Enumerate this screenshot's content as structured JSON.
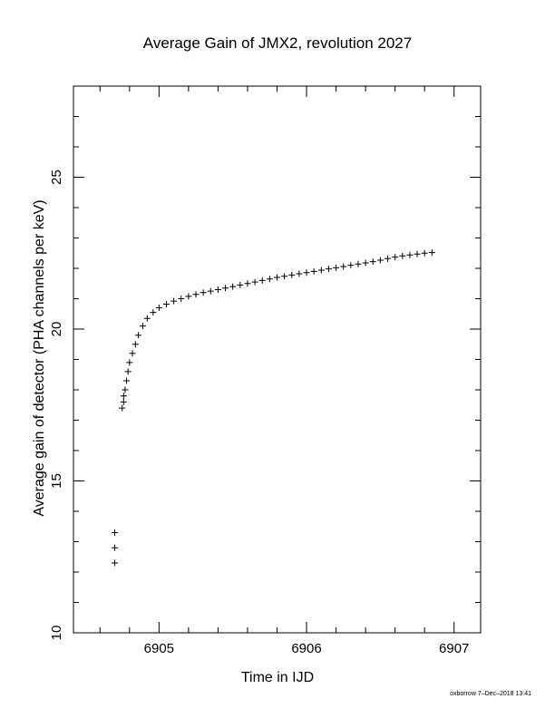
{
  "chart_data": {
    "type": "scatter",
    "title": "Average Gain of JMX2, revolution 2027",
    "xlabel": "Time in IJD",
    "ylabel": "Average gain of detector (PHA channels per keV)",
    "xlim": [
      6904.42,
      6907.18
    ],
    "ylim": [
      10,
      28
    ],
    "xticks": [
      6905,
      6906,
      6907
    ],
    "yticks": [
      10,
      15,
      20,
      25
    ],
    "marker": "+",
    "grid": false,
    "series": [
      {
        "points": [
          [
            6904.7,
            13.3
          ],
          [
            6904.7,
            12.8
          ],
          [
            6904.7,
            12.3
          ],
          [
            6904.75,
            17.4
          ],
          [
            6904.76,
            17.6
          ],
          [
            6904.76,
            17.8
          ],
          [
            6904.77,
            18.0
          ],
          [
            6904.78,
            18.3
          ],
          [
            6904.79,
            18.6
          ],
          [
            6904.8,
            18.9
          ],
          [
            6904.82,
            19.2
          ],
          [
            6904.84,
            19.5
          ],
          [
            6904.86,
            19.8
          ],
          [
            6904.89,
            20.1
          ],
          [
            6904.92,
            20.35
          ],
          [
            6904.96,
            20.55
          ],
          [
            6905.0,
            20.7
          ],
          [
            6905.05,
            20.82
          ],
          [
            6905.1,
            20.92
          ],
          [
            6905.15,
            21.0
          ],
          [
            6905.2,
            21.08
          ],
          [
            6905.25,
            21.14
          ],
          [
            6905.3,
            21.2
          ],
          [
            6905.35,
            21.25
          ],
          [
            6905.4,
            21.3
          ],
          [
            6905.45,
            21.35
          ],
          [
            6905.5,
            21.4
          ],
          [
            6905.55,
            21.45
          ],
          [
            6905.6,
            21.5
          ],
          [
            6905.65,
            21.55
          ],
          [
            6905.7,
            21.6
          ],
          [
            6905.75,
            21.65
          ],
          [
            6905.8,
            21.7
          ],
          [
            6905.85,
            21.74
          ],
          [
            6905.9,
            21.78
          ],
          [
            6905.95,
            21.82
          ],
          [
            6906.0,
            21.86
          ],
          [
            6906.05,
            21.9
          ],
          [
            6906.1,
            21.94
          ],
          [
            6906.15,
            21.98
          ],
          [
            6906.2,
            22.02
          ],
          [
            6906.25,
            22.06
          ],
          [
            6906.3,
            22.1
          ],
          [
            6906.35,
            22.14
          ],
          [
            6906.4,
            22.18
          ],
          [
            6906.45,
            22.22
          ],
          [
            6906.5,
            22.27
          ],
          [
            6906.55,
            22.32
          ],
          [
            6906.6,
            22.37
          ],
          [
            6906.65,
            22.41
          ],
          [
            6906.7,
            22.44
          ],
          [
            6906.75,
            22.47
          ],
          [
            6906.8,
            22.5
          ],
          [
            6906.85,
            22.52
          ]
        ]
      }
    ]
  },
  "footer": "oxborrow  7–Dec–2018 13:41"
}
